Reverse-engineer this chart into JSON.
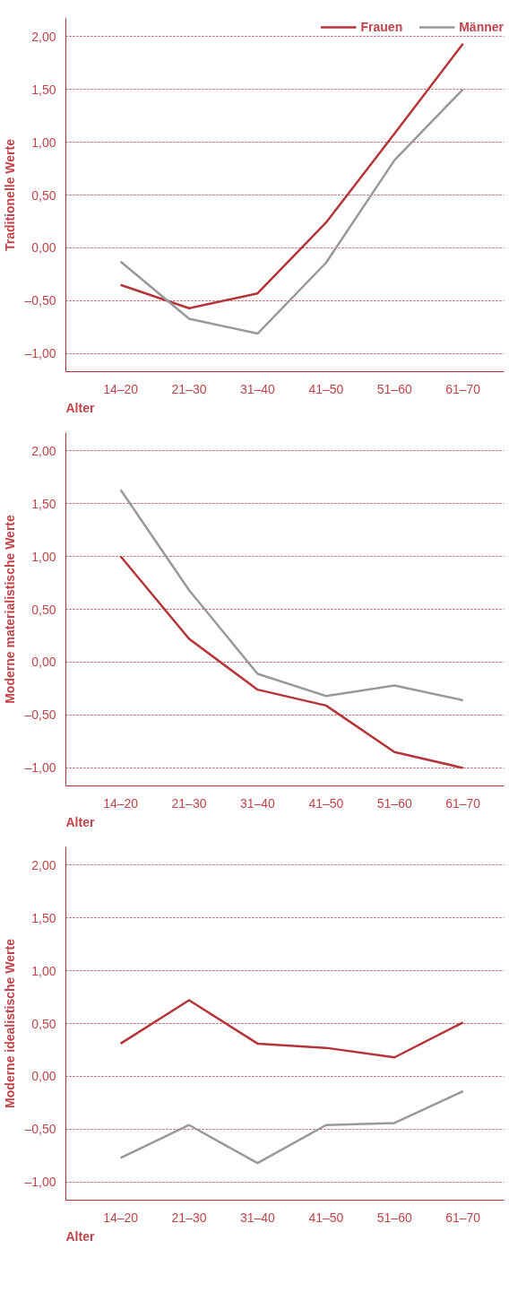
{
  "chart_data": [
    {
      "type": "line",
      "ylabel": "Traditionelle Werte",
      "xlabel": "Alter",
      "categories": [
        "14–20",
        "21–30",
        "31–40",
        "41–50",
        "51–60",
        "61–70"
      ],
      "ylim": [
        -1.17,
        2.17
      ],
      "yticks": [
        {
          "value": -1,
          "label": "–1,00"
        },
        {
          "value": -0.5,
          "label": "–0,50"
        },
        {
          "value": 0,
          "label": "0,00"
        },
        {
          "value": 0.5,
          "label": "0,50"
        },
        {
          "value": 1,
          "label": "1,00"
        },
        {
          "value": 1.5,
          "label": "1,50"
        },
        {
          "value": 2,
          "label": "2,00"
        }
      ],
      "grid": "y",
      "legend": "top right",
      "line_style": "solid",
      "series": [
        {
          "name": "Frauen",
          "color": "#b5343a",
          "values": [
            -0.35,
            -0.57,
            -0.43,
            0.24,
            1.08,
            1.93
          ]
        },
        {
          "name": "Männer",
          "color": "#999999",
          "values": [
            -0.13,
            -0.67,
            -0.81,
            -0.14,
            0.83,
            1.5
          ]
        }
      ]
    },
    {
      "type": "line",
      "ylabel": "Moderne materialistische Werte",
      "xlabel": "Alter",
      "categories": [
        "14–20",
        "21–30",
        "31–40",
        "41–50",
        "51–60",
        "61–70"
      ],
      "ylim": [
        -1.17,
        2.17
      ],
      "yticks": [
        {
          "value": -1,
          "label": "–1,00"
        },
        {
          "value": -0.5,
          "label": "–0,50"
        },
        {
          "value": 0,
          "label": "0,00"
        },
        {
          "value": 0.5,
          "label": "0,50"
        },
        {
          "value": 1,
          "label": "1,00"
        },
        {
          "value": 1.5,
          "label": "1,50"
        },
        {
          "value": 2,
          "label": "2,00"
        }
      ],
      "grid": "y",
      "line_style": "solid",
      "series": [
        {
          "color": "#b5343a",
          "values": [
            1.0,
            0.22,
            -0.26,
            -0.41,
            -0.85,
            -1.0
          ]
        },
        {
          "color": "#999999",
          "values": [
            1.63,
            0.68,
            -0.11,
            -0.32,
            -0.22,
            -0.36
          ]
        }
      ]
    },
    {
      "type": "line",
      "ylabel": "Moderne idealistische Werte",
      "xlabel": "Alter",
      "categories": [
        "14–20",
        "21–30",
        "31–40",
        "41–50",
        "51–60",
        "61–70"
      ],
      "ylim": [
        -1.17,
        2.17
      ],
      "yticks": [
        {
          "value": -1,
          "label": "–1,00"
        },
        {
          "value": -0.5,
          "label": "–0,50"
        },
        {
          "value": 0,
          "label": "0,00"
        },
        {
          "value": 0.5,
          "label": "0,50"
        },
        {
          "value": 1,
          "label": "1,00"
        },
        {
          "value": 1.5,
          "label": "1,50"
        },
        {
          "value": 2,
          "label": "2,00"
        }
      ],
      "grid": "y",
      "line_style": "solid",
      "series": [
        {
          "color": "#b5343a",
          "values": [
            0.31,
            0.72,
            0.31,
            0.27,
            0.18,
            0.51
          ]
        },
        {
          "color": "#999999",
          "values": [
            -0.77,
            -0.46,
            -0.82,
            -0.46,
            -0.44,
            -0.14
          ]
        }
      ]
    }
  ]
}
